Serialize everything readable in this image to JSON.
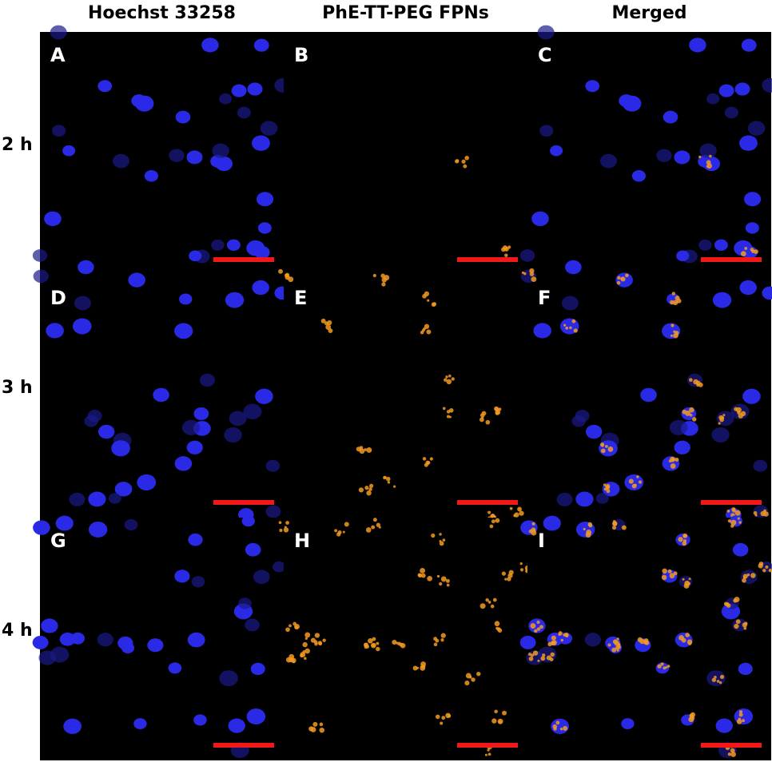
{
  "columns": [
    "Hoechst 33258",
    "PhE-TT-PEG FPNs",
    "Merged"
  ],
  "rows": [
    "2 h",
    "3 h",
    "4 h"
  ],
  "panels": [
    {
      "label": "A"
    },
    {
      "label": "B"
    },
    {
      "label": "C"
    },
    {
      "label": "D"
    },
    {
      "label": "E"
    },
    {
      "label": "F"
    },
    {
      "label": "G"
    },
    {
      "label": "H"
    },
    {
      "label": "I"
    }
  ]
}
